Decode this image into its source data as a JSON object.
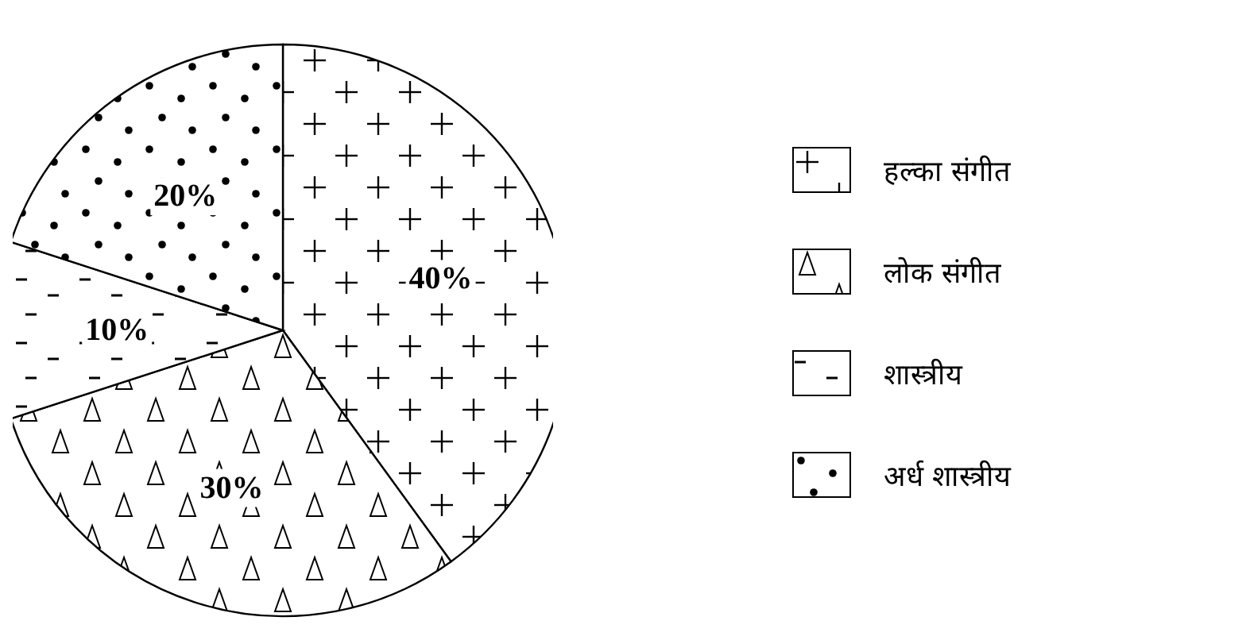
{
  "chart_data": {
    "type": "pie",
    "categories": [
      "हल्का संगीत",
      "लोक संगीत",
      "शास्त्रीय",
      "अर्ध शास्त्रीय"
    ],
    "values": [
      40,
      30,
      10,
      20
    ],
    "colors": [
      "#000000",
      "#000000",
      "#000000",
      "#000000"
    ],
    "value_labels": [
      "40%",
      "30%",
      "10%",
      "20%"
    ],
    "legend": "right"
  }
}
